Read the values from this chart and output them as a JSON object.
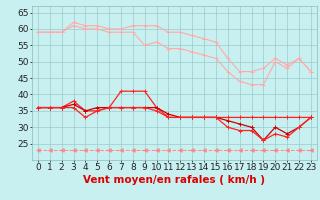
{
  "x": [
    0,
    1,
    2,
    3,
    4,
    5,
    6,
    7,
    8,
    9,
    10,
    11,
    12,
    13,
    14,
    15,
    16,
    17,
    18,
    19,
    20,
    21,
    22,
    23
  ],
  "series": [
    {
      "name": "line1_pink_top",
      "color": "#ffaaaa",
      "linewidth": 0.8,
      "marker": "+",
      "markersize": 3,
      "y": [
        59,
        59,
        59,
        62,
        61,
        61,
        60,
        60,
        61,
        61,
        61,
        59,
        59,
        58,
        57,
        56,
        51,
        47,
        47,
        48,
        51,
        49,
        51,
        47
      ]
    },
    {
      "name": "line2_pink_middle",
      "color": "#ffaaaa",
      "linewidth": 0.8,
      "marker": "+",
      "markersize": 3,
      "y": [
        59,
        59,
        59,
        61,
        60,
        60,
        59,
        59,
        59,
        55,
        56,
        54,
        54,
        53,
        52,
        51,
        47,
        44,
        43,
        43,
        50,
        48,
        51,
        47
      ]
    },
    {
      "name": "line3_red_high",
      "color": "#ff2222",
      "linewidth": 0.9,
      "marker": "+",
      "markersize": 3,
      "y": [
        36,
        36,
        36,
        38,
        35,
        35,
        36,
        41,
        41,
        41,
        36,
        33,
        33,
        33,
        33,
        33,
        33,
        33,
        33,
        33,
        33,
        33,
        33,
        33
      ]
    },
    {
      "name": "line4_dark_red",
      "color": "#cc0000",
      "linewidth": 0.9,
      "marker": "+",
      "markersize": 3,
      "y": [
        36,
        36,
        36,
        37,
        35,
        36,
        36,
        36,
        36,
        36,
        36,
        34,
        33,
        33,
        33,
        33,
        32,
        31,
        30,
        26,
        30,
        28,
        30,
        33
      ]
    },
    {
      "name": "line5_red_low",
      "color": "#ff2222",
      "linewidth": 0.9,
      "marker": "+",
      "markersize": 3,
      "y": [
        36,
        36,
        36,
        36,
        33,
        35,
        36,
        36,
        36,
        36,
        35,
        33,
        33,
        33,
        33,
        33,
        30,
        29,
        29,
        26,
        28,
        27,
        30,
        33
      ]
    },
    {
      "name": "line6_dashed_bottom",
      "color": "#ff8888",
      "linewidth": 0.7,
      "linestyle": "--",
      "marker": "<",
      "markersize": 2.5,
      "markerfacecolor": "#ff8888",
      "y": [
        23,
        23,
        23,
        23,
        23,
        23,
        23,
        23,
        23,
        23,
        23,
        23,
        23,
        23,
        23,
        23,
        23,
        23,
        23,
        23,
        23,
        23,
        23,
        23
      ]
    }
  ],
  "xlabel": "Vent moyen/en rafales ( km/h )",
  "ylim": [
    20,
    67
  ],
  "xlim": [
    -0.5,
    23.5
  ],
  "yticks": [
    25,
    30,
    35,
    40,
    45,
    50,
    55,
    60,
    65
  ],
  "xticks": [
    0,
    1,
    2,
    3,
    4,
    5,
    6,
    7,
    8,
    9,
    10,
    11,
    12,
    13,
    14,
    15,
    16,
    17,
    18,
    19,
    20,
    21,
    22,
    23
  ],
  "background_color": "#c8f0f0",
  "grid_color": "#99cccc",
  "xlabel_fontsize": 7.5,
  "tick_fontsize": 6.5
}
